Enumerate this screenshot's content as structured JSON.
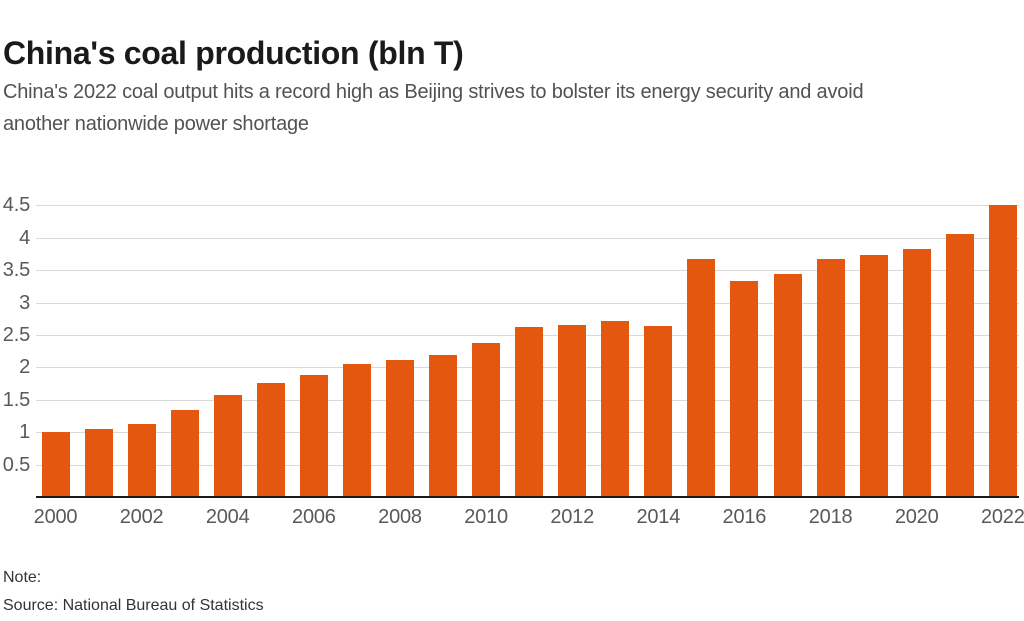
{
  "header": {
    "title": "China's coal production (bln T)",
    "subtitle_lines": [
      "China's 2022 coal output hits a record high as Beijing strives to bolster its energy security and avoid",
      "another nationwide power shortage"
    ]
  },
  "footer": {
    "note_label": "Note:",
    "source_label": "Source: National Bureau of Statistics"
  },
  "colors": {
    "bar": "#E4570E",
    "gridline": "#D9D9D9",
    "axis_line": "#1A1A1A",
    "tick_label": "#595959",
    "title": "#1A1A1A",
    "subtitle": "#525252",
    "footer_text": "#333333"
  },
  "chart_data": {
    "type": "bar",
    "title": "China's coal production (bln T)",
    "unit": "bln T",
    "categories": [
      "2000",
      "2001",
      "2002",
      "2003",
      "2004",
      "2005",
      "2006",
      "2007",
      "2008",
      "2009",
      "2010",
      "2011",
      "2012",
      "2013",
      "2014",
      "2015",
      "2016",
      "2017",
      "2018",
      "2019",
      "2020",
      "2021",
      "2022"
    ],
    "values": [
      1.0,
      1.05,
      1.12,
      1.34,
      1.57,
      1.76,
      1.89,
      2.05,
      2.12,
      2.19,
      2.37,
      2.63,
      2.66,
      2.71,
      2.64,
      3.67,
      3.34,
      3.44,
      3.68,
      3.74,
      3.83,
      4.06,
      4.5
    ],
    "xlabel": "",
    "ylabel": "",
    "ylim": [
      0,
      4.5
    ],
    "y_ticks": [
      0.5,
      1,
      1.5,
      2,
      2.5,
      3,
      3.5,
      4,
      4.5
    ],
    "x_tick_labels": [
      "2000",
      "2002",
      "2004",
      "2006",
      "2008",
      "2010",
      "2012",
      "2014",
      "2016",
      "2018",
      "2020",
      "2022"
    ],
    "grid": "horizontal",
    "legend": "none",
    "bar_color": "#E4570E"
  }
}
